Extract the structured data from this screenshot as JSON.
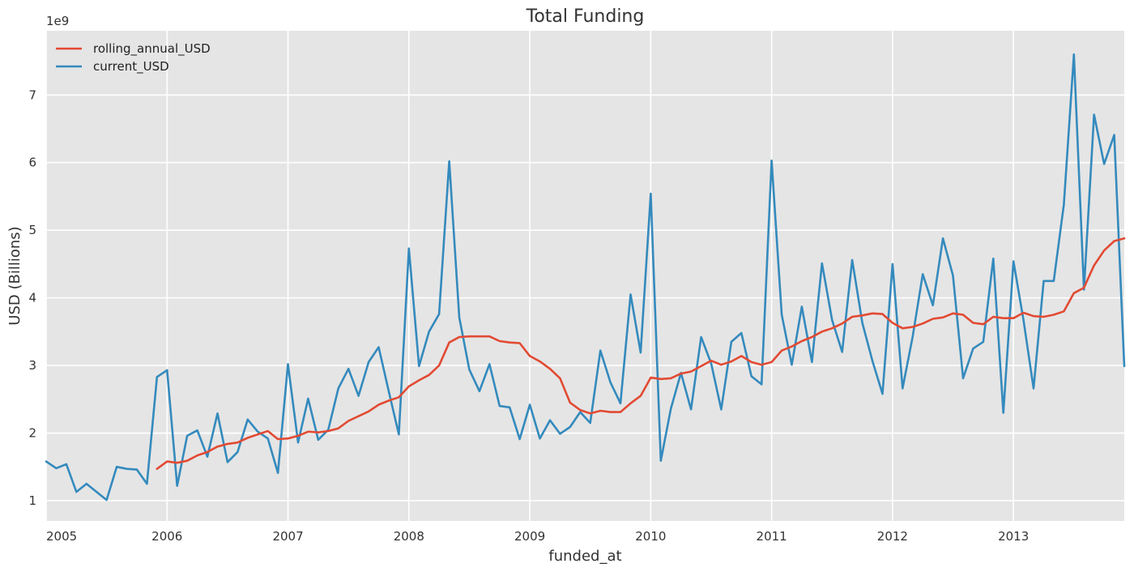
{
  "chart_data": {
    "type": "line",
    "title": "Total Funding",
    "xlabel": "funded_at",
    "ylabel": "USD (Billions)",
    "y_offset_text": "1e9",
    "x_ticks": [
      "2005",
      "2006",
      "2007",
      "2008",
      "2009",
      "2010",
      "2011",
      "2012",
      "2013"
    ],
    "y_ticks": [
      1,
      2,
      3,
      4,
      5,
      6,
      7
    ],
    "xlim": [
      "2005-01",
      "2013-12"
    ],
    "ylim": [
      0.7,
      7.95
    ],
    "grid": true,
    "legend_position": "top-left",
    "series": [
      {
        "name": "rolling_annual_USD",
        "color": "#e24a33",
        "start": "2005-12",
        "values": [
          1.47,
          1.58,
          1.56,
          1.59,
          1.67,
          1.72,
          1.8,
          1.84,
          1.86,
          1.93,
          1.98,
          2.03,
          1.91,
          1.92,
          1.96,
          2.02,
          2.01,
          2.03,
          2.07,
          2.18,
          2.25,
          2.32,
          2.42,
          2.48,
          2.53,
          2.69,
          2.78,
          2.86,
          3.0,
          3.34,
          3.42,
          3.43,
          3.43,
          3.43,
          3.36,
          3.34,
          3.33,
          3.14,
          3.06,
          2.95,
          2.81,
          2.45,
          2.34,
          2.29,
          2.33,
          2.31,
          2.31,
          2.44,
          2.55,
          2.82,
          2.8,
          2.81,
          2.88,
          2.91,
          2.99,
          3.07,
          3.01,
          3.06,
          3.14,
          3.05,
          3.01,
          3.05,
          3.22,
          3.28,
          3.36,
          3.42,
          3.5,
          3.55,
          3.62,
          3.72,
          3.74,
          3.77,
          3.76,
          3.63,
          3.55,
          3.57,
          3.62,
          3.69,
          3.71,
          3.77,
          3.75,
          3.63,
          3.61,
          3.72,
          3.7,
          3.7,
          3.78,
          3.73,
          3.72,
          3.75,
          3.8,
          4.07,
          4.15,
          4.48,
          4.7,
          4.84,
          4.88
        ]
      },
      {
        "name": "current_USD",
        "color": "#348abd",
        "start": "2005-01",
        "values": [
          1.58,
          1.48,
          1.54,
          1.13,
          1.25,
          1.13,
          1.01,
          1.5,
          1.47,
          1.46,
          1.25,
          2.83,
          2.93,
          1.22,
          1.96,
          2.04,
          1.65,
          2.29,
          1.57,
          1.72,
          2.2,
          2.02,
          1.92,
          1.41,
          3.02,
          1.86,
          2.51,
          1.9,
          2.05,
          2.66,
          2.95,
          2.55,
          3.05,
          3.27,
          2.62,
          1.98,
          4.73,
          2.99,
          3.5,
          3.76,
          6.02,
          3.71,
          2.94,
          2.62,
          3.02,
          2.4,
          2.38,
          1.91,
          2.42,
          1.92,
          2.19,
          1.99,
          2.09,
          2.31,
          2.15,
          3.22,
          2.75,
          2.44,
          4.05,
          3.19,
          5.54,
          1.59,
          2.36,
          2.89,
          2.35,
          3.42,
          3.03,
          2.35,
          3.35,
          3.48,
          2.84,
          2.72,
          6.03,
          3.75,
          3.01,
          3.87,
          3.05,
          4.51,
          3.67,
          3.2,
          4.56,
          3.63,
          3.07,
          2.58,
          4.5,
          2.66,
          3.43,
          4.35,
          3.89,
          4.88,
          4.33,
          2.81,
          3.25,
          3.35,
          4.58,
          2.3,
          4.54,
          3.67,
          2.66,
          4.25,
          4.25,
          5.38,
          7.6,
          4.12,
          6.71,
          5.98,
          6.41,
          2.99
        ]
      }
    ]
  }
}
